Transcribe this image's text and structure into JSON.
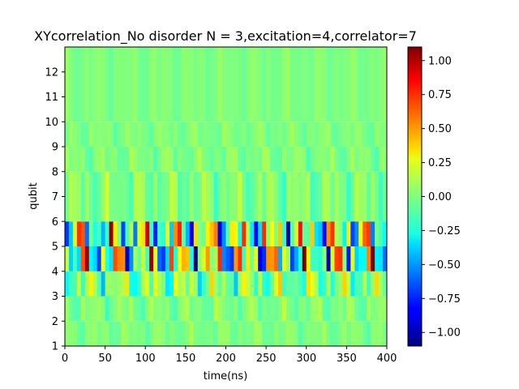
{
  "chart_data": {
    "type": "heatmap",
    "title": "XYcorrelation_No disorder  N =  3,excitation=4,correlator=7",
    "xlabel": "time(ns)",
    "ylabel": "qubit",
    "xlim": [
      0,
      400
    ],
    "ylim": [
      1,
      13
    ],
    "x_ticks": [
      0,
      50,
      100,
      150,
      200,
      250,
      300,
      350,
      400
    ],
    "y_ticks": [
      1,
      2,
      3,
      4,
      5,
      6,
      7,
      8,
      9,
      10,
      11,
      12
    ],
    "colormap": "jet",
    "clim": [
      -1.1,
      1.1
    ],
    "colorbar_ticks": [
      1.0,
      0.75,
      0.5,
      0.25,
      0.0,
      -0.25,
      -0.5,
      -0.75,
      -1.0
    ],
    "colorbar_tick_labels": [
      "1.00",
      "0.75",
      "0.50",
      "0.25",
      "0.00",
      "−0.25",
      "−0.50",
      "−0.75",
      "−1.00"
    ],
    "time_step_ns": 5,
    "rows": [
      {
        "qubit_range": [
          1,
          2
        ],
        "amplitude": 0.08
      },
      {
        "qubit_range": [
          2,
          3
        ],
        "amplitude": 0.12
      },
      {
        "qubit_range": [
          3,
          4
        ],
        "amplitude": 0.35
      },
      {
        "qubit_range": [
          4,
          5
        ],
        "amplitude": 0.95
      },
      {
        "qubit_range": [
          5,
          6
        ],
        "amplitude": 0.85
      },
      {
        "qubit_range": [
          6,
          8
        ],
        "amplitude": 0.15
      },
      {
        "qubit_range": [
          8,
          9
        ],
        "amplitude": 0.1
      },
      {
        "qubit_range": [
          9,
          10
        ],
        "amplitude": 0.07
      },
      {
        "qubit_range": [
          10,
          13
        ],
        "amplitude": 0.05
      }
    ]
  }
}
